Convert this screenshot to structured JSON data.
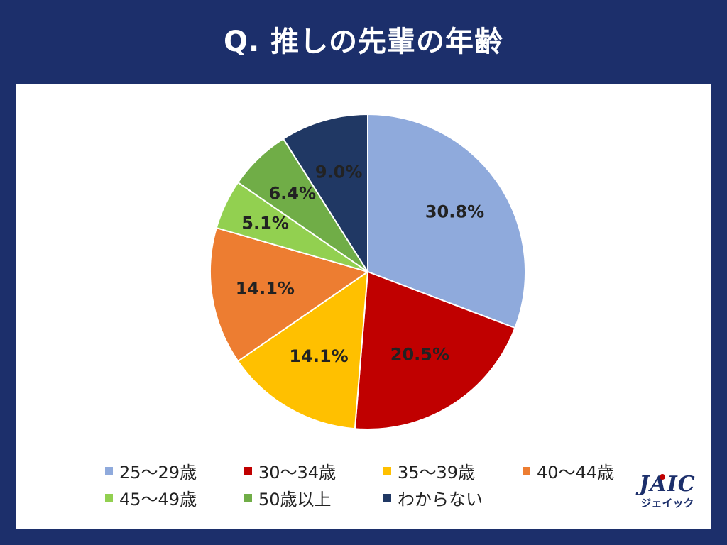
{
  "title": "Q. 推しの先輩の年齢",
  "chart_data": {
    "type": "pie",
    "categories": [
      "25～29歳",
      "30～34歳",
      "35～39歳",
      "40～44歳",
      "45～49歳",
      "50歳以上",
      "わからない"
    ],
    "values": [
      30.8,
      20.5,
      14.1,
      14.1,
      5.1,
      6.4,
      9.0
    ],
    "data_labels": [
      "30.8%",
      "20.5%",
      "14.1%",
      "14.1%",
      "5.1%",
      "6.4%",
      "9.0%"
    ],
    "colors": [
      "#8faadc",
      "#c00000",
      "#ffc000",
      "#ed7d31",
      "#92d050",
      "#70ad47",
      "#203864"
    ],
    "legend_placement": "bottom"
  },
  "logo": {
    "main": "JAIC",
    "sub": "ジェイック"
  }
}
